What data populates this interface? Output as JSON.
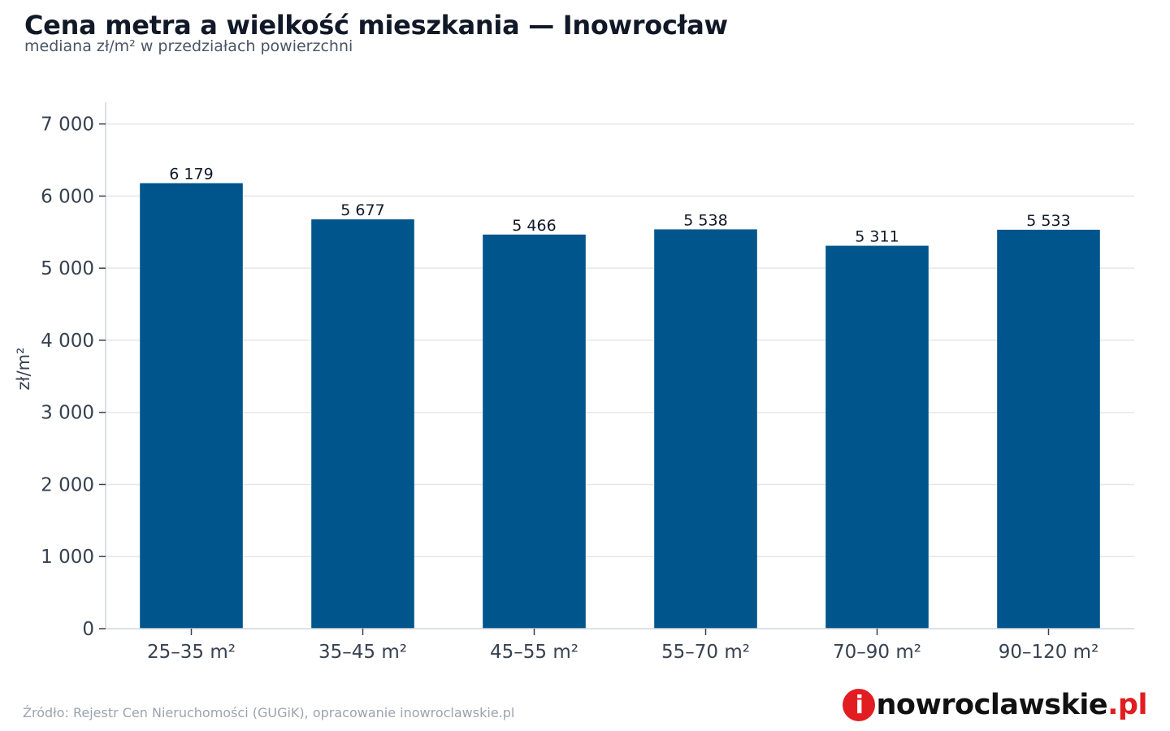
{
  "header": {
    "title": "Cena metra a wielkość mieszkania — Inowrocław",
    "subtitle": "mediana zł/m² w przedziałach powierzchni"
  },
  "chart_data": {
    "type": "bar",
    "categories": [
      "25–35 m²",
      "35–45 m²",
      "45–55 m²",
      "55–70 m²",
      "70–90 m²",
      "90–120 m²"
    ],
    "values": [
      6179,
      5677,
      5466,
      5538,
      5311,
      5533
    ],
    "data_labels": [
      "6 179",
      "5 677",
      "5 466",
      "5 538",
      "5 311",
      "5 533"
    ],
    "ylabel": "zł/m²",
    "xlabel": "",
    "ylim": [
      0,
      7300
    ],
    "yticks": [
      0,
      1000,
      2000,
      3000,
      4000,
      5000,
      6000,
      7000
    ],
    "ytick_labels": [
      "0",
      "1 000",
      "2 000",
      "3 000",
      "4 000",
      "5 000",
      "6 000",
      "7 000"
    ],
    "grid": true,
    "bar_color": "#00558c"
  },
  "footer": {
    "source": "Źródło: Rejestr Cen Nieruchomości (GUGiK), opracowanie inowroclawskie.pl",
    "logo": {
      "mark": "i",
      "name": "nowroclawskie",
      "tld": ".pl",
      "accent_color": "#e11d21"
    }
  }
}
